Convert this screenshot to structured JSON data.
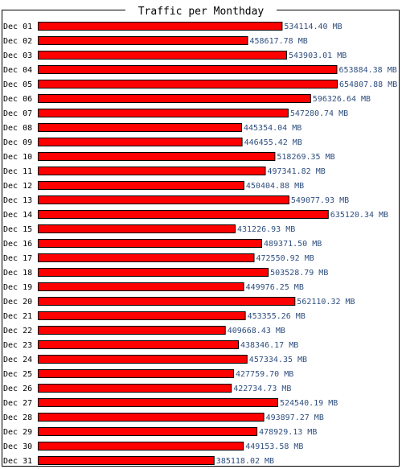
{
  "chart_data": {
    "type": "bar",
    "orientation": "horizontal",
    "title": "Traffic per Monthday",
    "unit": "MB",
    "categories": [
      "Dec 01",
      "Dec 02",
      "Dec 03",
      "Dec 04",
      "Dec 05",
      "Dec 06",
      "Dec 07",
      "Dec 08",
      "Dec 09",
      "Dec 10",
      "Dec 11",
      "Dec 12",
      "Dec 13",
      "Dec 14",
      "Dec 15",
      "Dec 16",
      "Dec 17",
      "Dec 18",
      "Dec 19",
      "Dec 20",
      "Dec 21",
      "Dec 22",
      "Dec 23",
      "Dec 24",
      "Dec 25",
      "Dec 26",
      "Dec 27",
      "Dec 28",
      "Dec 29",
      "Dec 30",
      "Dec 31"
    ],
    "values": [
      534114.4,
      458617.78,
      543903.01,
      653884.38,
      654807.88,
      596326.64,
      547280.74,
      445354.04,
      446455.42,
      518269.35,
      497341.82,
      450404.88,
      549077.93,
      635120.34,
      431226.93,
      489371.5,
      472550.92,
      503528.79,
      449976.25,
      562110.32,
      453355.26,
      409668.43,
      438346.17,
      457334.35,
      427759.7,
      422734.73,
      524540.19,
      493897.27,
      478929.13,
      449153.58,
      385118.02
    ],
    "value_labels": [
      "534114.40 MB",
      "458617.78 MB",
      "543903.01 MB",
      "653884.38 MB",
      "654807.88 MB",
      "596326.64 MB",
      "547280.74 MB",
      "445354.04 MB",
      "446455.42 MB",
      "518269.35 MB",
      "497341.82 MB",
      "450404.88 MB",
      "549077.93 MB",
      "635120.34 MB",
      "431226.93 MB",
      "489371.50 MB",
      "472550.92 MB",
      "503528.79 MB",
      "449976.25 MB",
      "562110.32 MB",
      "453355.26 MB",
      "409668.43 MB",
      "438346.17 MB",
      "457334.35 MB",
      "427759.70 MB",
      "422734.73 MB",
      "524540.19 MB",
      "493897.27 MB",
      "478929.13 MB",
      "449153.58 MB",
      "385118.02 MB"
    ],
    "xlim": [
      0,
      654807.88
    ],
    "grid": false,
    "legend": "none",
    "colors": {
      "bar_fill": "#ff0000",
      "bar_stroke": "#000000",
      "frame": "#000000",
      "value_text": "#2f4f7f",
      "label_text": "#000000"
    }
  }
}
